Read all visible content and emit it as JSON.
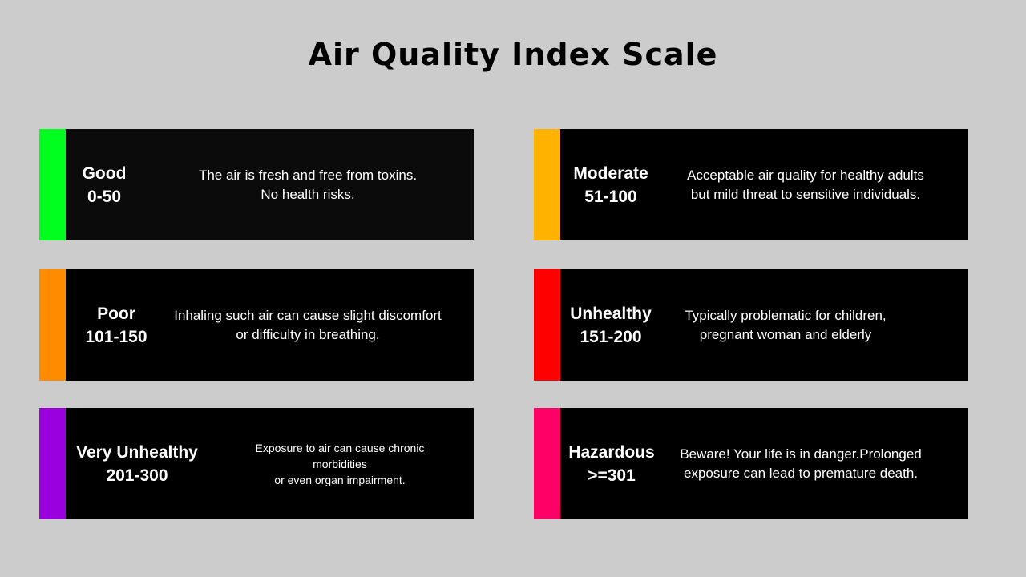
{
  "title": "Air Quality Index Scale",
  "levels": [
    {
      "name": "Good",
      "range": "0-50",
      "color": "#00ff1e",
      "description": [
        "The air is fresh and free from toxins.",
        "No health risks."
      ]
    },
    {
      "name": "Moderate",
      "range": "51-100",
      "color": "#ffb300",
      "description": [
        "Acceptable air quality for healthy adults",
        "but mild threat to sensitive individuals."
      ]
    },
    {
      "name": "Poor",
      "range": "101-150",
      "color": "#ff8c00",
      "description": [
        "Inhaling such air can cause slight discomfort",
        "or difficulty in breathing."
      ]
    },
    {
      "name": "Unhealthy",
      "range": "151-200",
      "color": "#ff0000",
      "description": [
        "Typically problematic for children,",
        "pregnant woman and elderly"
      ]
    },
    {
      "name": "Very Unhealthy",
      "range": "201-300",
      "color": "#9900dd",
      "description": [
        "Exposure to air can cause chronic",
        "morbidities",
        "or even organ impairment."
      ]
    },
    {
      "name": "Hazardous",
      "range": ">=301",
      "color": "#ff0066",
      "description": [
        "Beware! Your life is in danger.Prolonged",
        "exposure can lead to premature death."
      ]
    }
  ]
}
